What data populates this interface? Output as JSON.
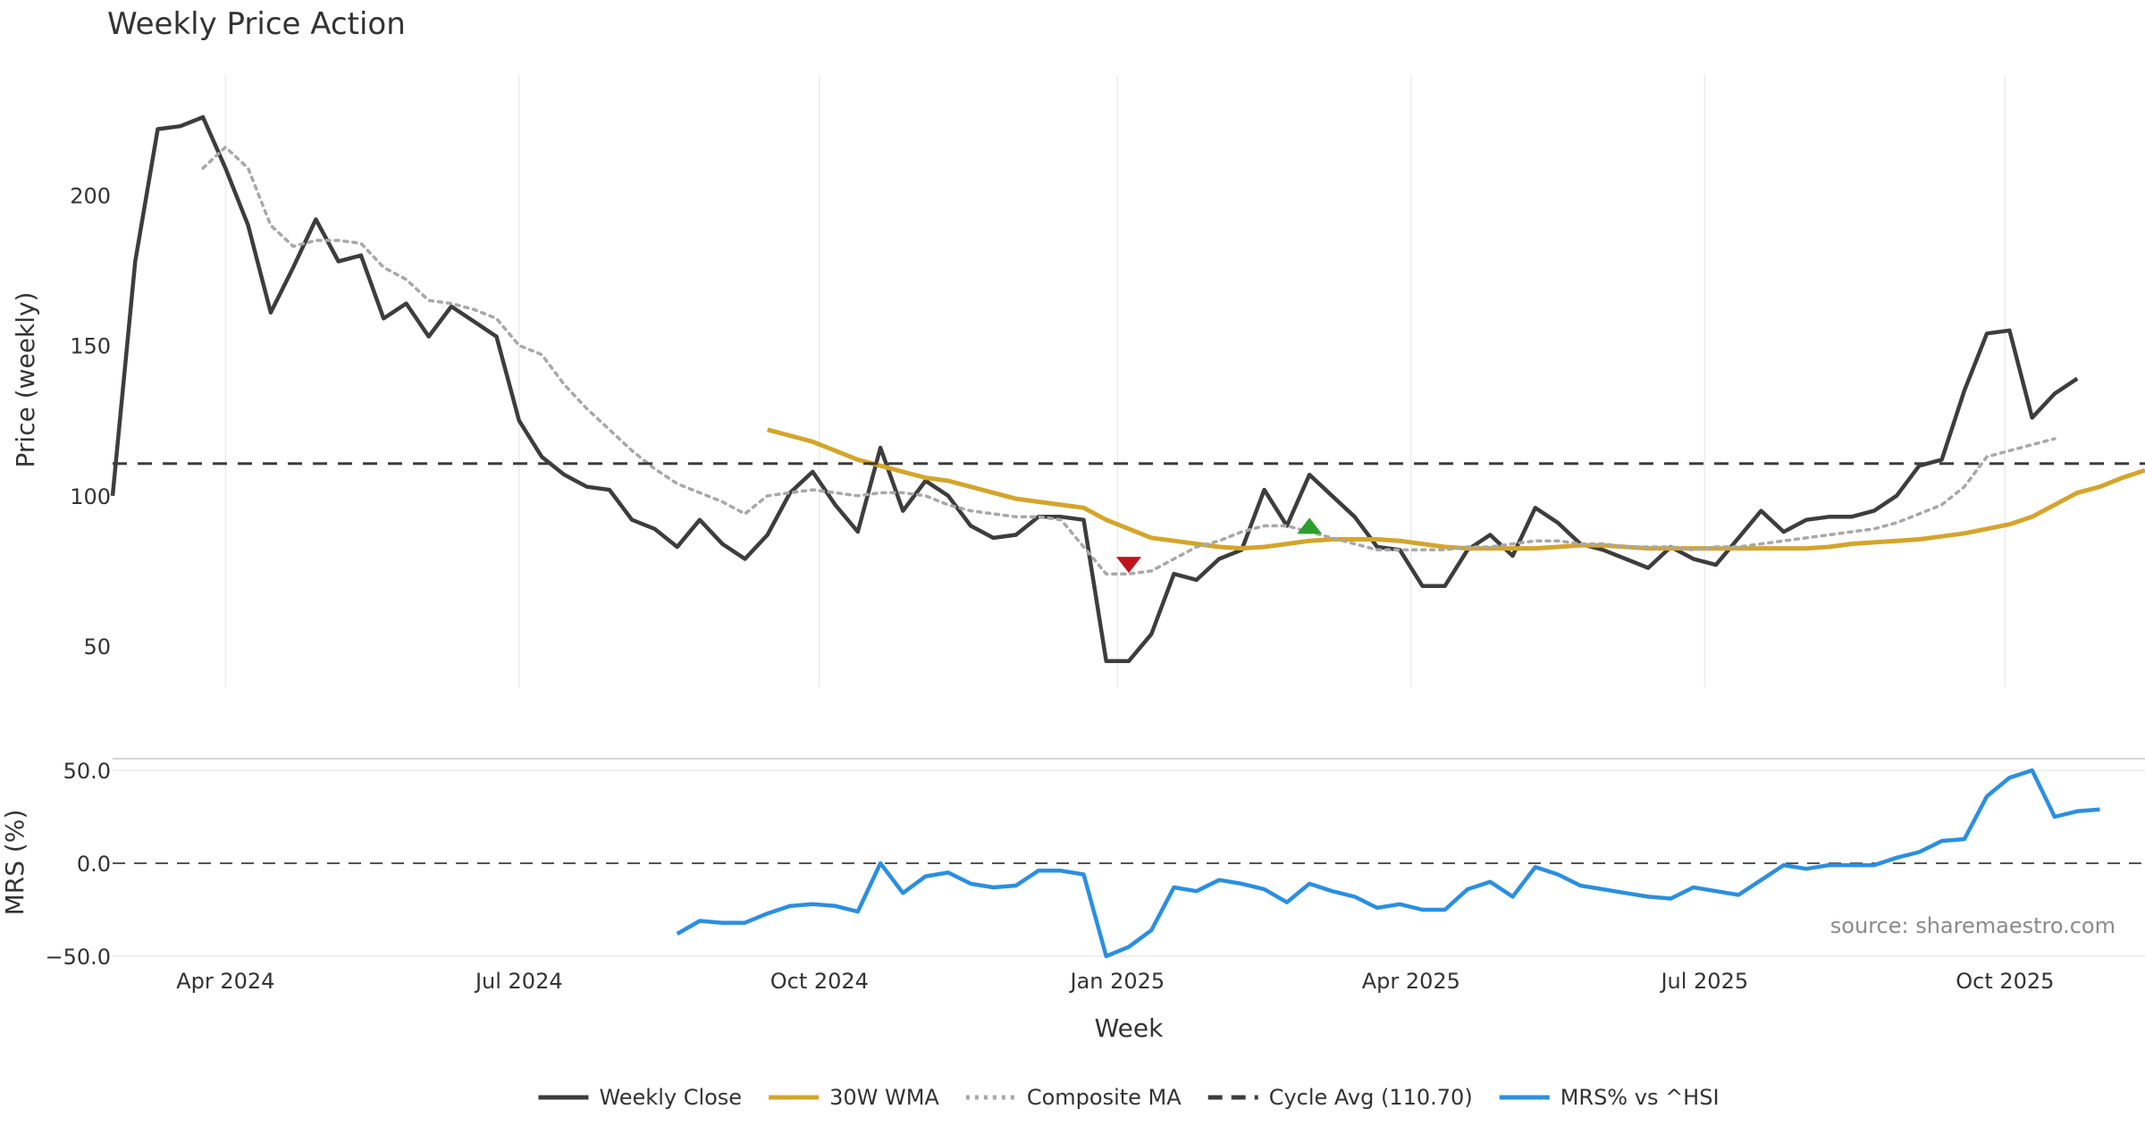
{
  "chart_data": [
    {
      "type": "line",
      "title": "Weekly Price Action",
      "ylabel": "Price (weekly)",
      "ylim": [
        36,
        240
      ],
      "y_ticks": [
        {
          "value": 50,
          "label": "50"
        },
        {
          "value": 100,
          "label": "100"
        },
        {
          "value": 150,
          "label": "150"
        },
        {
          "value": 200,
          "label": "200"
        }
      ],
      "x_range": [
        0,
        90
      ],
      "x_ticks": [
        {
          "value": 5,
          "label": "Apr 2024"
        },
        {
          "value": 18,
          "label": "Jul 2024"
        },
        {
          "value": 31.3,
          "label": "Oct 2024"
        },
        {
          "value": 44.5,
          "label": "Jan 2025"
        },
        {
          "value": 57.5,
          "label": "Apr 2025"
        },
        {
          "value": 70.5,
          "label": "Jul 2025"
        },
        {
          "value": 83.8,
          "label": "Oct 2025"
        }
      ],
      "series": [
        {
          "name": "Weekly Close",
          "color": "#3d3d3d",
          "style": "solid",
          "start": 0,
          "values": [
            100,
            178,
            222,
            223,
            226,
            209,
            190,
            161,
            176,
            192,
            178,
            180,
            159,
            164,
            153,
            163,
            158,
            153,
            125,
            113,
            107,
            103,
            102,
            92,
            89,
            83,
            92,
            84,
            79,
            87,
            101,
            108,
            97,
            88,
            116,
            95,
            105,
            100,
            90,
            86,
            87,
            93,
            93,
            92,
            45,
            45,
            54,
            74,
            72,
            79,
            82,
            102,
            90,
            107,
            100,
            93,
            83,
            82,
            70,
            70,
            82,
            87,
            80,
            96,
            91,
            84,
            82,
            79,
            76,
            83,
            79,
            77,
            86,
            95,
            88,
            92,
            93,
            93,
            95,
            100,
            110,
            112,
            135,
            154,
            155,
            126,
            134,
            139
          ]
        },
        {
          "name": "30W WMA",
          "color": "#d4a52b",
          "style": "solid",
          "start": 29,
          "values": [
            122,
            120,
            118,
            115,
            112,
            110,
            108,
            106,
            105,
            103,
            101,
            99,
            98,
            97,
            96,
            92,
            89,
            86,
            85,
            84,
            83,
            82.5,
            83,
            84,
            85,
            85.5,
            85.5,
            85.5,
            85,
            84,
            83,
            82.5,
            82.5,
            82.5,
            82.5,
            83,
            83.5,
            83.5,
            83,
            82.5,
            82.5,
            82.5,
            82.5,
            82.5,
            82.5,
            82.5,
            82.5,
            83,
            84,
            84.5,
            85,
            85.5,
            86.5,
            87.5,
            89,
            90.5,
            93,
            97,
            101,
            103,
            106,
            108.5
          ]
        },
        {
          "name": "Composite MA",
          "color": "#a8a8a8",
          "style": "dotted",
          "start": 4,
          "values": [
            209,
            216,
            209,
            190,
            183,
            185,
            185,
            184,
            176,
            172,
            165,
            164,
            162,
            159,
            150,
            147,
            137,
            129,
            122,
            115,
            109,
            104,
            101,
            98,
            94,
            100,
            101,
            102,
            101,
            100,
            101,
            101,
            100,
            97,
            95,
            94,
            93,
            93,
            92,
            83,
            74,
            74,
            75,
            79,
            83,
            85,
            88,
            90,
            90,
            88,
            86,
            84,
            82,
            82,
            82,
            82,
            83,
            83,
            84,
            85,
            85,
            84,
            84,
            83,
            83,
            83,
            82,
            83,
            83,
            84,
            85,
            86,
            87,
            88,
            89,
            91,
            94,
            97,
            103,
            113,
            115,
            117,
            119
          ]
        },
        {
          "name": "Cycle Avg (110.70)",
          "color": "#3d3d3d",
          "style": "dashed",
          "start": 0,
          "values": [
            110.7
          ]
        }
      ],
      "markers": [
        {
          "name": "down-marker",
          "x": 45,
          "y": 77,
          "direction": "down",
          "color": "#c0141c"
        },
        {
          "name": "up-marker",
          "x": 53,
          "y": 90,
          "direction": "up",
          "color": "#2ca02c"
        }
      ]
    },
    {
      "type": "line",
      "ylabel": "MRS (%)",
      "xlabel": "Week",
      "ylim": [
        -50,
        50
      ],
      "y_ticks": [
        {
          "value": 50,
          "label": "50.0"
        },
        {
          "value": 0,
          "label": "0.0"
        },
        {
          "value": -50,
          "label": "−50.0"
        }
      ],
      "reference_line": 0,
      "series": [
        {
          "name": "MRS% vs ^HSI",
          "color": "#2b8fe0",
          "style": "solid",
          "start": 25,
          "values": [
            -38,
            -31,
            -32,
            -32,
            -27,
            -23,
            -22,
            -23,
            -26,
            0,
            -16,
            -7,
            -5,
            -11,
            -13,
            -12,
            -4,
            -4,
            -6,
            -50,
            -45,
            -36,
            -13,
            -15,
            -9,
            -11,
            -14,
            -21,
            -11,
            -15,
            -18,
            -24,
            -22,
            -25,
            -25,
            -14,
            -10,
            -18,
            -2,
            -6,
            -12,
            -14,
            -16,
            -18,
            -19,
            -13,
            -15,
            -17,
            -9,
            -1,
            -3,
            -1,
            -1,
            -1,
            3,
            6,
            12,
            13,
            36,
            46,
            50,
            25,
            28,
            29
          ]
        }
      ]
    }
  ],
  "legend": [
    {
      "label": "Weekly Close",
      "color": "#3d3d3d",
      "style": "solid"
    },
    {
      "label": "30W WMA",
      "color": "#d4a52b",
      "style": "solid"
    },
    {
      "label": "Composite MA",
      "color": "#a8a8a8",
      "style": "dotted"
    },
    {
      "label": "Cycle Avg (110.70)",
      "color": "#3d3d3d",
      "style": "dashed"
    },
    {
      "label": "MRS% vs ^HSI",
      "color": "#2b8fe0",
      "style": "solid"
    }
  ],
  "source_note": "source: sharemaestro.com"
}
